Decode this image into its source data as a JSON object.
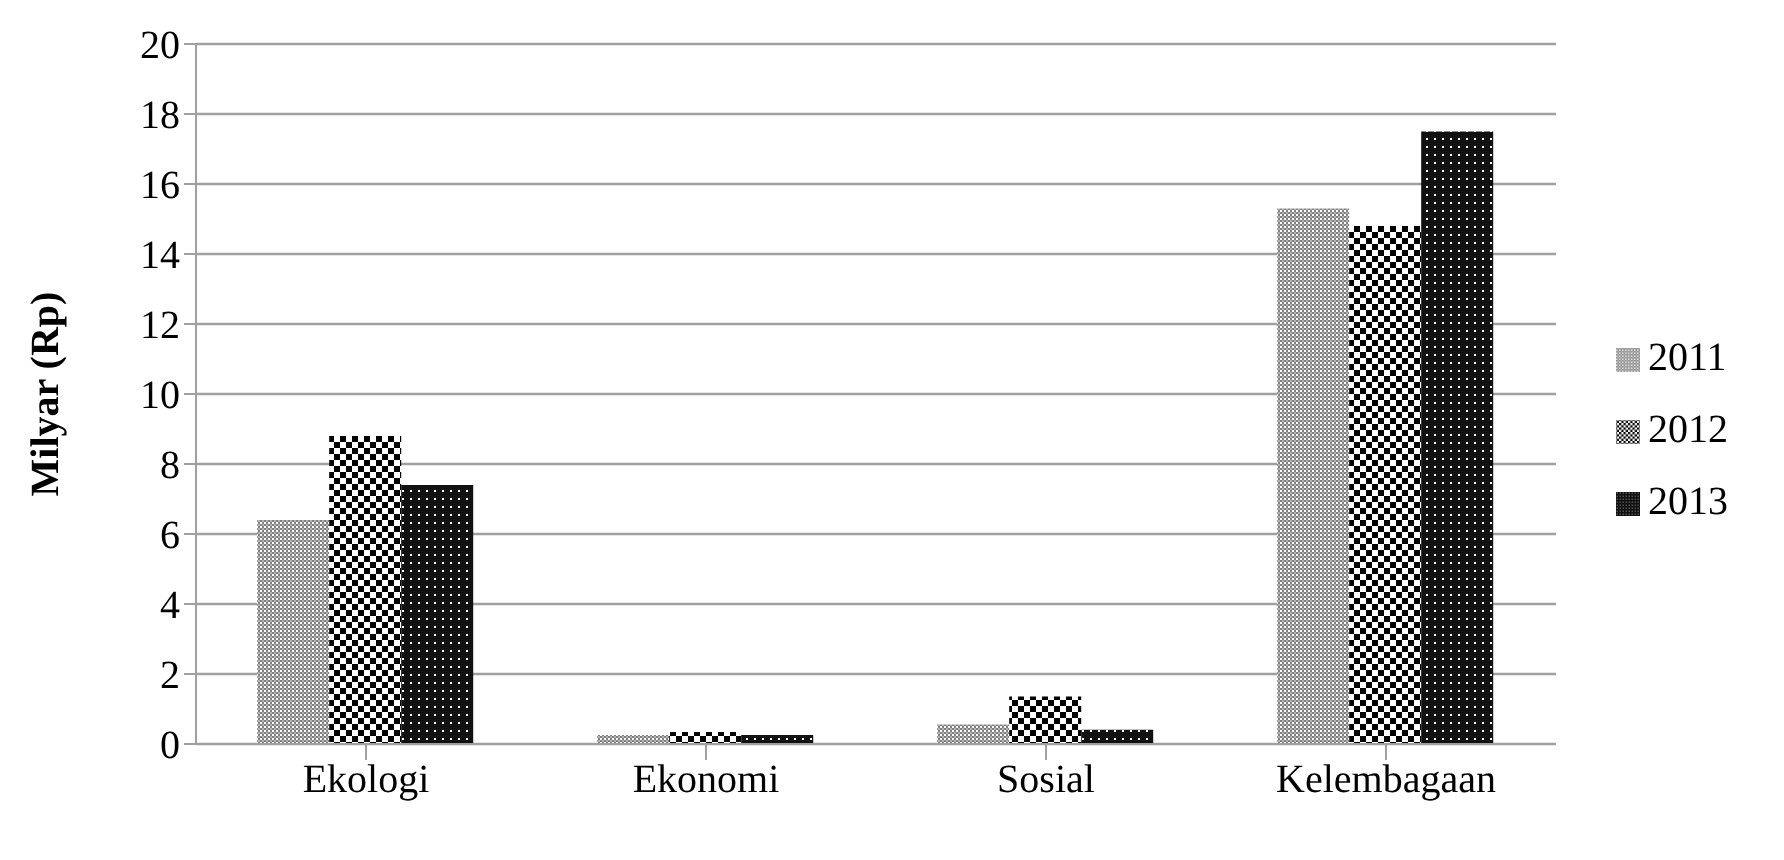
{
  "chart_data": {
    "type": "bar",
    "ylabel": "Milyar (Rp)",
    "categories": [
      "Ekologi",
      "Ekonomi",
      "Sosial",
      "Kelembagaan"
    ],
    "series": [
      {
        "name": "2011",
        "color": "#808080",
        "values": [
          6.4,
          0.26,
          0.56,
          15.3
        ]
      },
      {
        "name": "2012",
        "color": "#000000",
        "values": [
          8.8,
          0.34,
          1.36,
          14.8
        ]
      },
      {
        "name": "2013",
        "color": "#111111",
        "values": [
          7.4,
          0.26,
          0.41,
          17.5
        ]
      }
    ],
    "ylim": [
      0,
      20
    ],
    "yticks": [
      0,
      2,
      4,
      6,
      8,
      10,
      12,
      14,
      16,
      18,
      20
    ],
    "grid": "y",
    "legend": "right"
  }
}
